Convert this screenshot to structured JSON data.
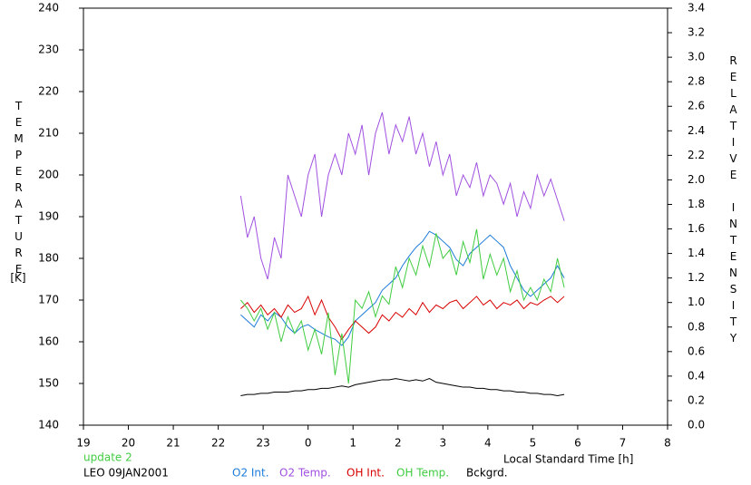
{
  "chart_data": {
    "type": "line",
    "y_label": "TEMPERATURE",
    "y_unit": "[K]",
    "y2_label": "RELATIVE INTENSITY",
    "x_label": "Local Standard Time [h]",
    "status": "update 2",
    "station": "LEO 09JAN2001",
    "xlim": [
      19,
      32
    ],
    "xticks": [
      19,
      20,
      21,
      22,
      23,
      {
        "value": 24,
        "label": "0"
      },
      {
        "value": 25,
        "label": "1"
      },
      {
        "value": 26,
        "label": "2"
      },
      {
        "value": 27,
        "label": "3"
      },
      {
        "value": 28,
        "label": "4"
      },
      {
        "value": 29,
        "label": "5"
      },
      {
        "value": 30,
        "label": "6"
      },
      {
        "value": 31,
        "label": "7"
      },
      {
        "value": 32,
        "label": "8"
      }
    ],
    "ylim": [
      140,
      240
    ],
    "yticks": [
      140,
      150,
      160,
      170,
      180,
      190,
      200,
      210,
      220,
      230,
      240
    ],
    "y2lim": [
      0,
      3.4
    ],
    "y2ticks": [
      {
        "value": 0,
        "label": "0.0"
      },
      0.2,
      0.4,
      0.6,
      0.8,
      {
        "value": 1,
        "label": "1.0"
      },
      1.2,
      1.4,
      1.6,
      1.8,
      {
        "value": 2,
        "label": "2.0"
      },
      2.2,
      2.4,
      2.6,
      2.8,
      {
        "value": 3,
        "label": "3.0"
      },
      3.2,
      3.4
    ],
    "x": [
      22.5,
      22.65,
      22.8,
      22.95,
      23.1,
      23.25,
      23.4,
      23.55,
      23.7,
      23.85,
      24.0,
      24.15,
      24.3,
      24.45,
      24.6,
      24.75,
      24.9,
      25.05,
      25.2,
      25.35,
      25.5,
      25.65,
      25.8,
      25.95,
      26.1,
      26.25,
      26.4,
      26.55,
      26.7,
      26.85,
      27.0,
      27.15,
      27.3,
      27.45,
      27.6,
      27.75,
      27.9,
      28.05,
      28.2,
      28.35,
      28.5,
      28.65,
      28.8,
      28.95,
      29.1,
      29.25,
      29.4,
      29.55,
      29.7
    ],
    "series": [
      {
        "name": "O2 Int.",
        "color": "#1c7bd8",
        "axis": "y2",
        "values": [
          0.9,
          0.85,
          0.8,
          0.9,
          0.85,
          0.92,
          0.88,
          0.8,
          0.75,
          0.8,
          0.82,
          0.78,
          0.75,
          0.72,
          0.7,
          0.65,
          0.72,
          0.85,
          0.9,
          0.95,
          1.0,
          1.1,
          1.15,
          1.2,
          1.3,
          1.38,
          1.45,
          1.5,
          1.58,
          1.55,
          1.5,
          1.45,
          1.35,
          1.3,
          1.4,
          1.45,
          1.5,
          1.55,
          1.5,
          1.45,
          1.3,
          1.2,
          1.1,
          1.05,
          1.1,
          1.15,
          1.2,
          1.3,
          1.2
        ]
      },
      {
        "name": "O2 Temp.",
        "color": "#a050e0",
        "values": [
          195,
          185,
          190,
          180,
          175,
          185,
          180,
          200,
          195,
          190,
          200,
          205,
          190,
          200,
          205,
          200,
          210,
          205,
          212,
          200,
          210,
          215,
          205,
          212,
          208,
          214,
          205,
          210,
          202,
          208,
          200,
          205,
          195,
          200,
          197,
          203,
          195,
          200,
          198,
          193,
          198,
          190,
          196,
          192,
          200,
          195,
          199,
          194,
          189
        ]
      },
      {
        "name": "OH Int.",
        "color": "#d80000",
        "axis": "y2",
        "values": [
          0.95,
          1.0,
          0.92,
          0.98,
          0.9,
          0.95,
          0.88,
          0.98,
          0.92,
          0.95,
          1.05,
          0.9,
          1.02,
          0.88,
          0.8,
          0.7,
          0.78,
          0.85,
          0.8,
          0.75,
          0.8,
          0.9,
          0.85,
          0.92,
          0.88,
          0.95,
          0.9,
          1.0,
          0.92,
          0.98,
          0.95,
          1.0,
          1.02,
          0.95,
          1.0,
          1.05,
          0.98,
          1.02,
          0.95,
          1.0,
          0.98,
          1.02,
          0.95,
          1.0,
          0.98,
          1.02,
          1.05,
          1.0,
          1.05
        ]
      },
      {
        "name": "OH Temp.",
        "color": "#40cc40",
        "values": [
          170,
          168,
          165,
          168,
          163,
          167,
          160,
          166,
          162,
          165,
          158,
          163,
          157,
          167,
          152,
          162,
          150,
          170,
          168,
          172,
          166,
          171,
          169,
          178,
          173,
          180,
          176,
          183,
          178,
          186,
          180,
          182,
          176,
          184,
          179,
          187,
          175,
          181,
          176,
          180,
          172,
          177,
          170,
          173,
          170,
          175,
          172,
          180,
          173
        ]
      },
      {
        "name": "Bckgrd.",
        "color": "#000000",
        "axis": "y2",
        "values": [
          0.24,
          0.25,
          0.25,
          0.26,
          0.26,
          0.27,
          0.27,
          0.27,
          0.28,
          0.28,
          0.29,
          0.29,
          0.3,
          0.3,
          0.31,
          0.32,
          0.31,
          0.33,
          0.34,
          0.35,
          0.36,
          0.37,
          0.37,
          0.38,
          0.37,
          0.36,
          0.37,
          0.36,
          0.38,
          0.35,
          0.34,
          0.33,
          0.32,
          0.31,
          0.31,
          0.3,
          0.3,
          0.29,
          0.29,
          0.28,
          0.28,
          0.27,
          0.27,
          0.26,
          0.26,
          0.25,
          0.25,
          0.24,
          0.25
        ]
      }
    ]
  }
}
